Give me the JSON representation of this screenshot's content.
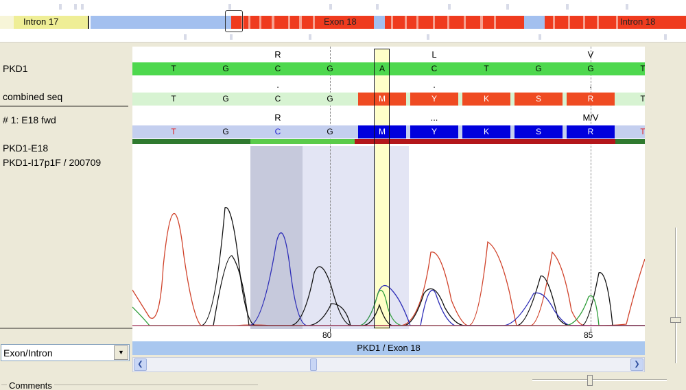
{
  "overview": {
    "intron_left_label": "Intron 17",
    "exon_label": "Exon 18",
    "intron_right_label": "Intron 18",
    "colors": {
      "intron": "#efee96",
      "coding": "#a3c0ef",
      "exon_variant": "#ef3b1e"
    }
  },
  "tracks": {
    "reference_label": "PKD1",
    "combined_label": "combined seq",
    "read_label": "# 1: E18 fwd",
    "sample_line1": "PKD1-E18",
    "sample_line2": "PKD1-I17p1F / 200709"
  },
  "sequence": {
    "reference_aa": [
      "R",
      "L",
      "V"
    ],
    "reference_bases": [
      "T",
      "G",
      "C",
      "G",
      "A",
      "C",
      "T",
      "G",
      "G",
      "T"
    ],
    "combined_bases": [
      "T",
      "G",
      "C",
      "G",
      "M",
      "Y",
      "K",
      "S",
      "R",
      "T"
    ],
    "combined_dots": [
      ".",
      ".",
      "."
    ],
    "read_aa": [
      "R",
      "...",
      "M/V"
    ],
    "read_bases": [
      "T",
      "G",
      "C",
      "G",
      "M",
      "Y",
      "K",
      "S",
      "R",
      "T"
    ],
    "colors": {
      "reference": "#4ed84e",
      "combined_ok": "#d7f3d2",
      "combined_variant": "#ef4b22",
      "read": "#c4cfef",
      "read_variant": "#0000dd"
    }
  },
  "ruler": {
    "tick_80": "80",
    "tick_85": "85"
  },
  "exon_bar": {
    "label": "PKD1 / Exon 18"
  },
  "controls": {
    "region_select_value": "Exon/Intron",
    "comments_label": "Comments",
    "scroll_left_icon": "chevron-left-icon",
    "scroll_right_icon": "chevron-right-icon"
  }
}
